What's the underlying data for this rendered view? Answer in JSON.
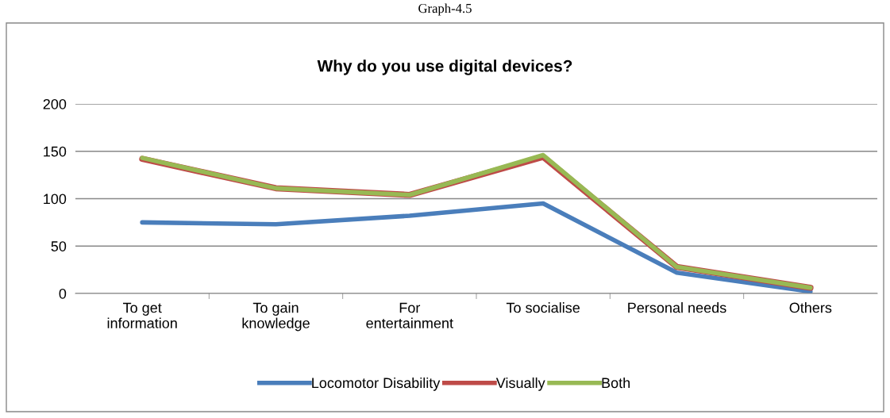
{
  "chart_data": {
    "type": "line",
    "title": "Why do you use digital devices?",
    "annotations": [
      "Graph-4.5"
    ],
    "categories": [
      "To get\ninformation",
      "To gain\nknowledge",
      "For\nentertainment",
      "To socialise",
      "Personal needs",
      "Others"
    ],
    "series": [
      {
        "name": "Locomotor Disability",
        "color": "#4a7ebb",
        "values": [
          75,
          73,
          82,
          95,
          22,
          2
        ]
      },
      {
        "name": "Visually",
        "color": "#be4b48",
        "values": [
          142,
          111,
          104,
          144,
          28,
          6
        ]
      },
      {
        "name": "Both",
        "color": "#98b954",
        "values": [
          143,
          111,
          104,
          146,
          28,
          6
        ]
      }
    ],
    "ylim": [
      0,
      200
    ],
    "yticks": [
      0,
      50,
      100,
      150,
      200
    ],
    "grid": "y",
    "legend": "bottom",
    "marker": "none",
    "line_style": "solid"
  }
}
